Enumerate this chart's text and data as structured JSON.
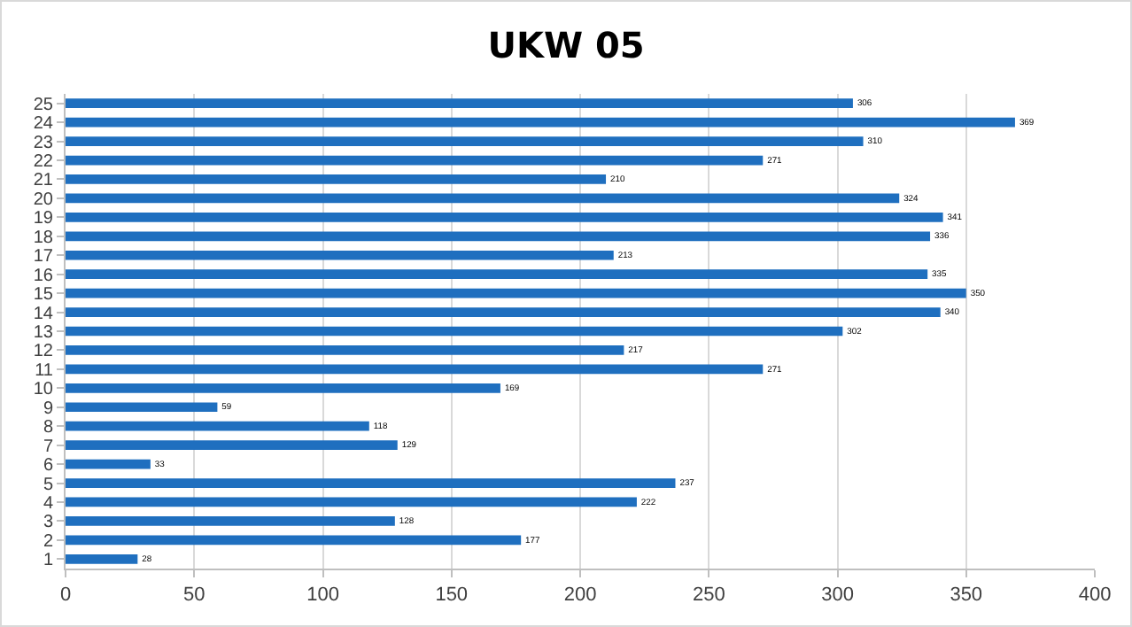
{
  "chart_data": {
    "type": "bar",
    "title": "UKW 05",
    "orientation": "horizontal",
    "categories": [
      "25",
      "24",
      "23",
      "22",
      "21",
      "20",
      "19",
      "18",
      "17",
      "16",
      "15",
      "14",
      "13",
      "12",
      "11",
      "10",
      "9",
      "8",
      "7",
      "6",
      "5",
      "4",
      "3",
      "2",
      "1"
    ],
    "values": [
      306,
      369,
      310,
      271,
      210,
      324,
      341,
      336,
      213,
      335,
      350,
      340,
      302,
      217,
      271,
      169,
      59,
      118,
      129,
      33,
      237,
      222,
      128,
      177,
      28
    ],
    "color": "#1f6fbf",
    "xlim": [
      0,
      400
    ],
    "xticks": [
      0,
      50,
      100,
      150,
      200,
      250,
      300,
      350,
      400
    ],
    "grid": "x",
    "data_labels": true
  }
}
